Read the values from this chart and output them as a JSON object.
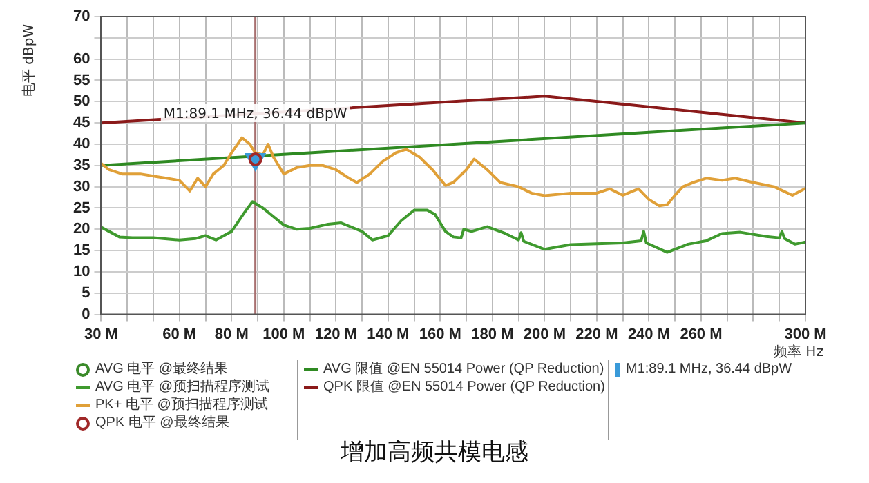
{
  "chart_data": {
    "type": "line",
    "title": "增加高频共模电感",
    "xlabel": "频率 Hz",
    "ylabel": "电平 dBpW",
    "xlim": [
      30,
      300
    ],
    "xticks": [
      {
        "value": 30,
        "label": "30 M"
      },
      {
        "value": 40,
        "label": null
      },
      {
        "value": 50,
        "label": null
      },
      {
        "value": 60,
        "label": "60 M"
      },
      {
        "value": 70,
        "label": null
      },
      {
        "value": 80,
        "label": "80 M"
      },
      {
        "value": 90,
        "label": null
      },
      {
        "value": 100,
        "label": "100 M"
      },
      {
        "value": 110,
        "label": null
      },
      {
        "value": 120,
        "label": "120 M"
      },
      {
        "value": 130,
        "label": null
      },
      {
        "value": 140,
        "label": "140 M"
      },
      {
        "value": 150,
        "label": null
      },
      {
        "value": 160,
        "label": "160 M"
      },
      {
        "value": 170,
        "label": null
      },
      {
        "value": 180,
        "label": "180 M"
      },
      {
        "value": 190,
        "label": null
      },
      {
        "value": 200,
        "label": "200 M"
      },
      {
        "value": 210,
        "label": null
      },
      {
        "value": 220,
        "label": "220 M"
      },
      {
        "value": 230,
        "label": null
      },
      {
        "value": 240,
        "label": "240 M"
      },
      {
        "value": 250,
        "label": null
      },
      {
        "value": 260,
        "label": "260 M"
      },
      {
        "value": 270,
        "label": null
      },
      {
        "value": 280,
        "label": null
      },
      {
        "value": 290,
        "label": null
      },
      {
        "value": 300,
        "label": "300 M"
      }
    ],
    "ylim": [
      0,
      70
    ],
    "yticks": [
      0,
      5,
      10,
      15,
      20,
      25,
      30,
      35,
      40,
      45,
      50,
      55,
      60,
      {
        "value": 65,
        "label": null
      },
      70
    ],
    "grid": true,
    "legend": "bottom",
    "series": [
      {
        "name": "AVG 电平 @最终结果",
        "type": "scatter",
        "marker": "circle",
        "color": "#3a8a2a"
      },
      {
        "name": "AVG 电平 @预扫描程序测试",
        "color": "#3f9a2e",
        "x": [
          30,
          33,
          37,
          42,
          50,
          60,
          66,
          70,
          74,
          80,
          85,
          88,
          92,
          100,
          105,
          110,
          117,
          122,
          130,
          134,
          140,
          145,
          150,
          155,
          158,
          162,
          165,
          168,
          169,
          172,
          178,
          185,
          190,
          191,
          192,
          200,
          210,
          220,
          230,
          237,
          238,
          239,
          247,
          255,
          262,
          268,
          275,
          285,
          290,
          291,
          292,
          296,
          300
        ],
        "values": [
          20.5,
          19.5,
          18.2,
          18,
          18,
          17.5,
          17.8,
          18.5,
          17.5,
          19.5,
          24,
          26.5,
          25,
          21,
          20,
          20.2,
          21.2,
          21.5,
          19.5,
          17.5,
          18.5,
          22,
          24.5,
          24.5,
          23.5,
          19.5,
          18.2,
          18,
          20,
          19.5,
          20.6,
          19,
          17.5,
          19.2,
          17.2,
          15.3,
          16.4,
          16.6,
          16.8,
          17.3,
          19.5,
          16.8,
          14.6,
          16.5,
          17.3,
          19,
          19.3,
          18.3,
          18,
          19.5,
          17.8,
          16.5,
          17
        ]
      },
      {
        "name": "PK+ 电平 @预扫描程序测试",
        "color": "#e0a038",
        "x": [
          30,
          33,
          38,
          45,
          50,
          55,
          60,
          64,
          67,
          70,
          73,
          77,
          80,
          84,
          87,
          89,
          92,
          94,
          96,
          100,
          105,
          110,
          115,
          120,
          125,
          128,
          133,
          138,
          143,
          147,
          152,
          157,
          162,
          165,
          170,
          173,
          178,
          183,
          190,
          195,
          200,
          210,
          220,
          225,
          230,
          236,
          240,
          244,
          247,
          250,
          253,
          257,
          262,
          268,
          273,
          280,
          288,
          295,
          300
        ],
        "values": [
          35.5,
          34,
          33,
          33,
          32.5,
          32,
          31.5,
          29,
          32,
          30,
          33,
          35,
          38,
          41.5,
          40,
          38,
          37.5,
          40,
          37,
          33,
          34.5,
          35,
          35,
          34,
          32,
          31,
          33,
          36,
          38,
          38.8,
          37,
          34,
          30.3,
          31,
          34,
          36.5,
          34,
          31,
          30,
          28.5,
          27.9,
          28.5,
          28.5,
          29.5,
          28,
          29.5,
          27,
          25.5,
          25.8,
          28,
          30,
          31,
          32,
          31.5,
          32,
          31,
          30,
          28,
          29.6
        ]
      },
      {
        "name": "QPK 电平 @最终结果",
        "type": "scatter",
        "marker": "circle",
        "color": "#a02828",
        "x": [
          89.1
        ],
        "values": [
          36.44
        ]
      },
      {
        "name": "AVG 限值 @EN 55014 Power (QP Reduction)",
        "color": "#2f8a22",
        "x": [
          30,
          300
        ],
        "values": [
          35,
          45
        ]
      },
      {
        "name": "QPK 限值 @EN 55014 Power (QP Reduction)",
        "color": "#8b1a1a",
        "x": [
          30,
          200,
          300
        ],
        "values": [
          45,
          51.3,
          45
        ]
      },
      {
        "name": "M1:89.1 MHz, 36.44 dBpW",
        "type": "scatter",
        "marker": "triangle",
        "color": "#3a9ad9",
        "x": [
          89.1
        ],
        "values": [
          36.44
        ]
      }
    ],
    "ref_lines": [
      {
        "axis": "x",
        "value": 89.1,
        "color": "#a87070"
      }
    ],
    "annotations": [
      {
        "text": "M1:89.1 MHz, 36.44 dBpW",
        "x": 89.1,
        "y": 36.44
      }
    ]
  }
}
